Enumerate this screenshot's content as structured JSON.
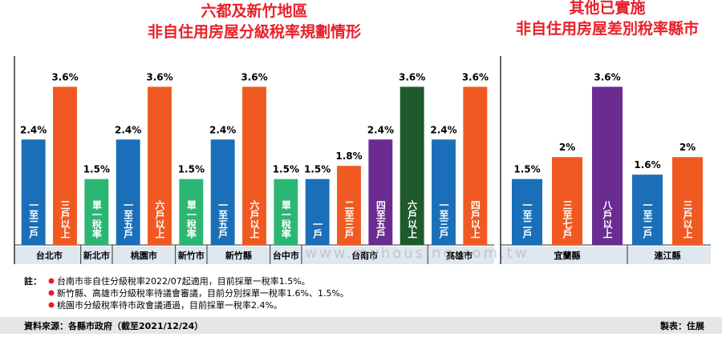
{
  "chart_data": [
    {
      "type": "bar",
      "title": [
        "六都及新竹地區",
        "非自住用房屋分級稅率規劃情形"
      ],
      "ylim": [
        0,
        4.3
      ],
      "groups": [
        {
          "name": "台北市",
          "labels": [
            "一至二戶",
            "三戶以上"
          ],
          "values": [
            2.4,
            3.6
          ],
          "value_labels": [
            "2.4%",
            "3.6%"
          ],
          "colors": [
            "#1a6fb8",
            "#f05a22"
          ]
        },
        {
          "name": "新北市",
          "labels": [
            "單一稅率"
          ],
          "values": [
            1.5
          ],
          "value_labels": [
            "1.5%"
          ],
          "colors": [
            "#2cb673"
          ]
        },
        {
          "name": "桃園市",
          "labels": [
            "一至五戶",
            "六戶以上"
          ],
          "values": [
            2.4,
            3.6
          ],
          "value_labels": [
            "2.4%",
            "3.6%"
          ],
          "colors": [
            "#1a6fb8",
            "#f05a22"
          ]
        },
        {
          "name": "新竹市",
          "labels": [
            "單一稅率"
          ],
          "values": [
            1.5
          ],
          "value_labels": [
            "1.5%"
          ],
          "colors": [
            "#2cb673"
          ]
        },
        {
          "name": "新竹縣",
          "labels": [
            "一至五戶",
            "六戶以上"
          ],
          "values": [
            2.4,
            3.6
          ],
          "value_labels": [
            "2.4%",
            "3.6%"
          ],
          "colors": [
            "#1a6fb8",
            "#f05a22"
          ]
        },
        {
          "name": "台中市",
          "labels": [
            "單一稅率"
          ],
          "values": [
            1.5
          ],
          "value_labels": [
            "1.5%"
          ],
          "colors": [
            "#2cb673"
          ]
        },
        {
          "name": "台南市",
          "labels": [
            "一戶",
            "二至三戶",
            "四至五戶",
            "六戶以上"
          ],
          "values": [
            1.5,
            1.8,
            2.4,
            3.6
          ],
          "value_labels": [
            "1.5%",
            "1.8%",
            "2.4%",
            "3.6%"
          ],
          "colors": [
            "#1a6fb8",
            "#f05a22",
            "#6a2c91",
            "#1e5a2c"
          ]
        },
        {
          "name": "高雄市",
          "labels": [
            "一至三戶",
            "四戶以上"
          ],
          "values": [
            2.4,
            3.6
          ],
          "value_labels": [
            "2.4%",
            "3.6%"
          ],
          "colors": [
            "#1a6fb8",
            "#f05a22"
          ]
        }
      ]
    },
    {
      "type": "bar",
      "title": [
        "其他已實施",
        "非自住用房屋差別稅率縣市"
      ],
      "ylim": [
        0,
        4.3
      ],
      "groups": [
        {
          "name": "宜蘭縣",
          "labels": [
            "一至二戶",
            "三至七戶",
            "八戶以上"
          ],
          "values": [
            1.5,
            2,
            3.6
          ],
          "value_labels": [
            "1.5%",
            "2%",
            "3.6%"
          ],
          "colors": [
            "#1a6fb8",
            "#f05a22",
            "#6a2c91"
          ]
        },
        {
          "name": "連江縣",
          "labels": [
            "一至二戶",
            "三戶以上"
          ],
          "values": [
            1.6,
            2
          ],
          "value_labels": [
            "1.6%",
            "2%"
          ],
          "colors": [
            "#1a6fb8",
            "#f05a22"
          ]
        }
      ]
    }
  ],
  "watermark": "www.myhousing.com.tw",
  "notes": {
    "label": "註：",
    "items": [
      "台南市非自住分級稅率2022/07起適用，目前採單一稅率1.5%。",
      "新竹縣、高雄市分級稅率待議會審議，目前分別採單一稅率1.6%、1.5%。",
      "桃園市分級稅率待市政會議通過，目前採單一稅率2.4%。"
    ]
  },
  "source": "資料來源：各縣市政府（截至2021/12/24）",
  "credit": "製表：住展"
}
